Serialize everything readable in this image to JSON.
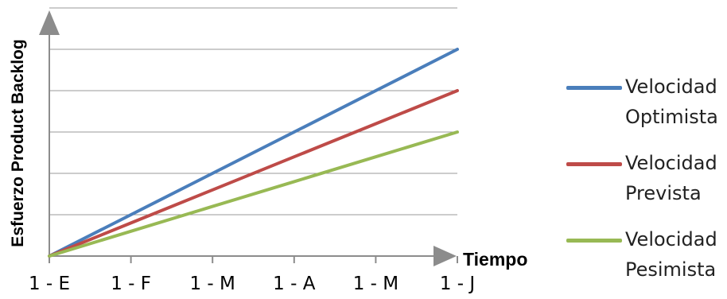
{
  "chart_data": {
    "type": "line",
    "title": "",
    "xlabel": "Tiempo",
    "ylabel": "Esfuerzo Product Backlog",
    "categories": [
      "1 - E",
      "1 - F",
      "1 - M",
      "1 - A",
      "1 - M",
      "1 - J"
    ],
    "ylim": [
      0,
      6
    ],
    "grid": true,
    "legend_position": "right",
    "series": [
      {
        "name": "Velocidad Optimista",
        "name_lines": [
          "Velocidad",
          "Optimista"
        ],
        "color": "#4a7ebb",
        "values": [
          0,
          1,
          2,
          3,
          4,
          5
        ]
      },
      {
        "name": "Velocidad Prevista",
        "name_lines": [
          "Velocidad",
          "Prevista"
        ],
        "color": "#be4b48",
        "values": [
          0,
          0.8,
          1.6,
          2.4,
          3.2,
          4
        ]
      },
      {
        "name": "Velocidad Pesimista",
        "name_lines": [
          "Velocidad",
          "Pesimista"
        ],
        "color": "#98b954",
        "values": [
          0,
          0.6,
          1.2,
          1.8,
          2.4,
          3
        ]
      }
    ]
  }
}
